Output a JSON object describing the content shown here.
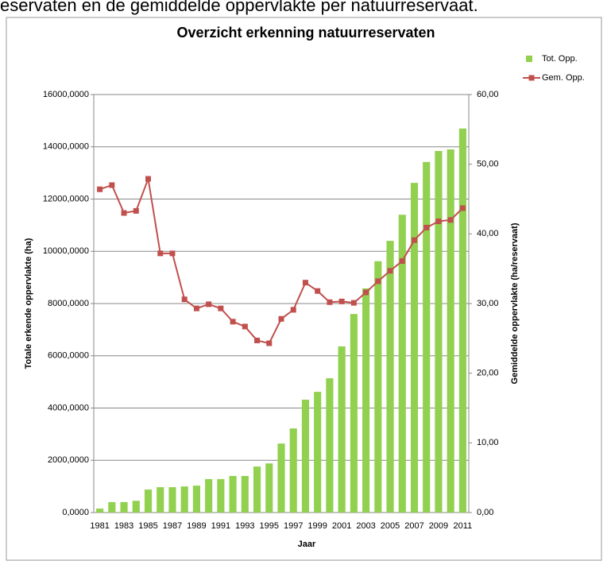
{
  "caption": "eservaten en de gemiddelde oppervlakte per natuurreservaat.",
  "chart_data": {
    "type": "bar-line",
    "title": "Overzicht erkenning natuurreservaten",
    "xlabel": "Jaar",
    "ylabel": "Totale erkende oppervlakte (ha)",
    "y2label": "Gemiddelde oppervlakte (ha/reservaat)",
    "categories": [
      "1981",
      null,
      "1983",
      null,
      "1985",
      null,
      "1987",
      null,
      "1989",
      null,
      "1991",
      null,
      "1993",
      null,
      "1995",
      null,
      "1997",
      null,
      "1999",
      null,
      "2001",
      null,
      "2003",
      null,
      "2005",
      null,
      "2007",
      null,
      "2009",
      null,
      "2011"
    ],
    "series": [
      {
        "name": "Tot. Opp.",
        "color": "#92d050",
        "kind": "bar",
        "values": [
          150,
          400,
          400,
          450,
          880,
          970,
          970,
          1000,
          1030,
          1280,
          1280,
          1400,
          1400,
          1760,
          1880,
          2640,
          3220,
          4320,
          4620,
          5140,
          6360,
          7600,
          8580,
          9620,
          10400,
          11400,
          12620,
          13420,
          13840,
          13900,
          14700
        ]
      },
      {
        "name": "Gem. Opp.",
        "color": "#c0504d",
        "kind": "line",
        "axis": "y2",
        "values": [
          46.4,
          47.0,
          43.0,
          43.3,
          47.9,
          37.2,
          37.2,
          30.6,
          29.3,
          29.9,
          29.3,
          27.4,
          26.7,
          24.7,
          24.3,
          27.8,
          29.1,
          33.0,
          31.8,
          30.2,
          30.3,
          30.1,
          31.6,
          33.2,
          34.7,
          36.1,
          39.1,
          40.9,
          41.8,
          42.0,
          43.7
        ]
      }
    ],
    "ylim": [
      0,
      16000
    ],
    "yticks": [
      {
        "value": 0,
        "label": "0,0000"
      },
      {
        "value": 2000,
        "label": "2000,0000"
      },
      {
        "value": 4000,
        "label": "4000,0000"
      },
      {
        "value": 6000,
        "label": "6000,0000"
      },
      {
        "value": 8000,
        "label": "8000,0000"
      },
      {
        "value": 10000,
        "label": "10000,0000"
      },
      {
        "value": 12000,
        "label": "12000,0000"
      },
      {
        "value": 14000,
        "label": "14000,0000"
      },
      {
        "value": 16000,
        "label": "16000,0000"
      }
    ],
    "y2lim": [
      0,
      60
    ],
    "y2ticks": [
      {
        "value": 0,
        "label": "0,00"
      },
      {
        "value": 10,
        "label": "10,00"
      },
      {
        "value": 20,
        "label": "20,00"
      },
      {
        "value": 30,
        "label": "30,00"
      },
      {
        "value": 40,
        "label": "40,00"
      },
      {
        "value": 50,
        "label": "50,00"
      },
      {
        "value": 60,
        "label": "60,00"
      }
    ],
    "grid": true,
    "legend": "top-right"
  }
}
